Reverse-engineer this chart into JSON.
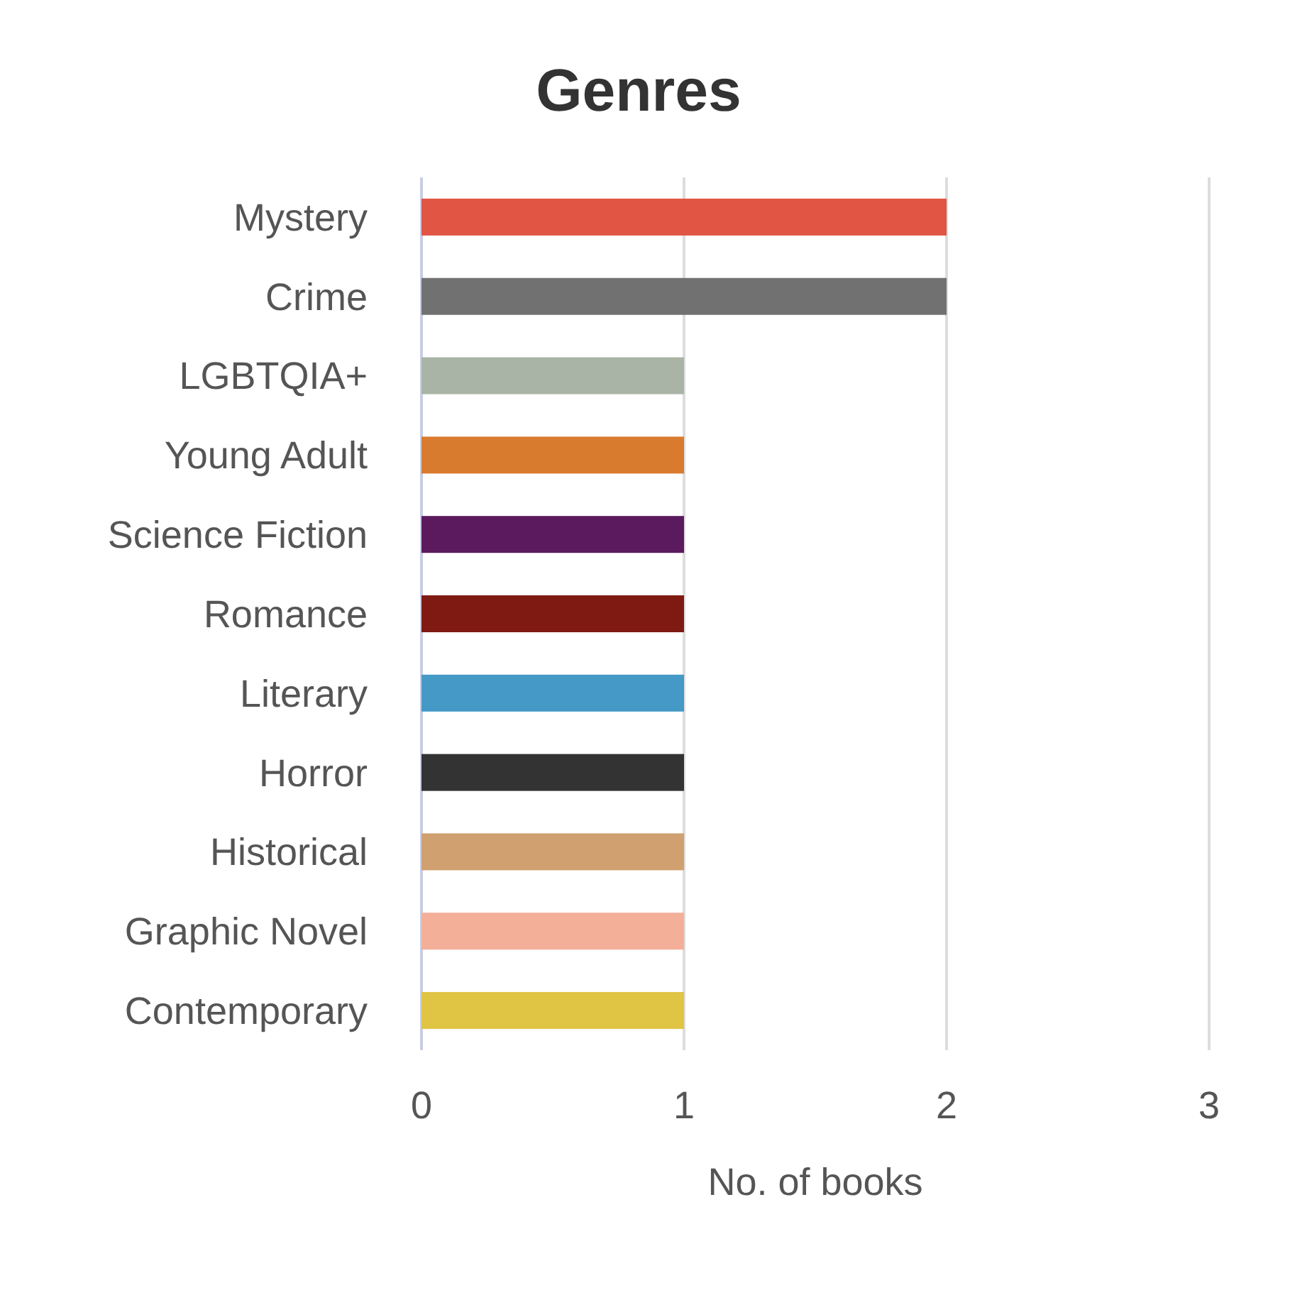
{
  "chart_data": {
    "type": "bar",
    "orientation": "horizontal",
    "title": "Genres",
    "xlabel": "No. of books",
    "categories": [
      "Mystery",
      "Crime",
      "LGBTQIA+",
      "Young Adult",
      "Science Fiction",
      "Romance",
      "Literary",
      "Horror",
      "Historical",
      "Graphic Novel",
      "Contemporary"
    ],
    "values": [
      2,
      2,
      1,
      1,
      1,
      1,
      1,
      1,
      1,
      1,
      1
    ],
    "colors": [
      "#e05543",
      "#717171",
      "#a9b4a6",
      "#d97b2f",
      "#5c1a5e",
      "#7f1a12",
      "#4499c6",
      "#333333",
      "#d0a070",
      "#f4af98",
      "#e0c443"
    ],
    "xlim": [
      0,
      3
    ],
    "xticks": [
      0,
      1,
      2,
      3
    ],
    "grid": "x"
  }
}
